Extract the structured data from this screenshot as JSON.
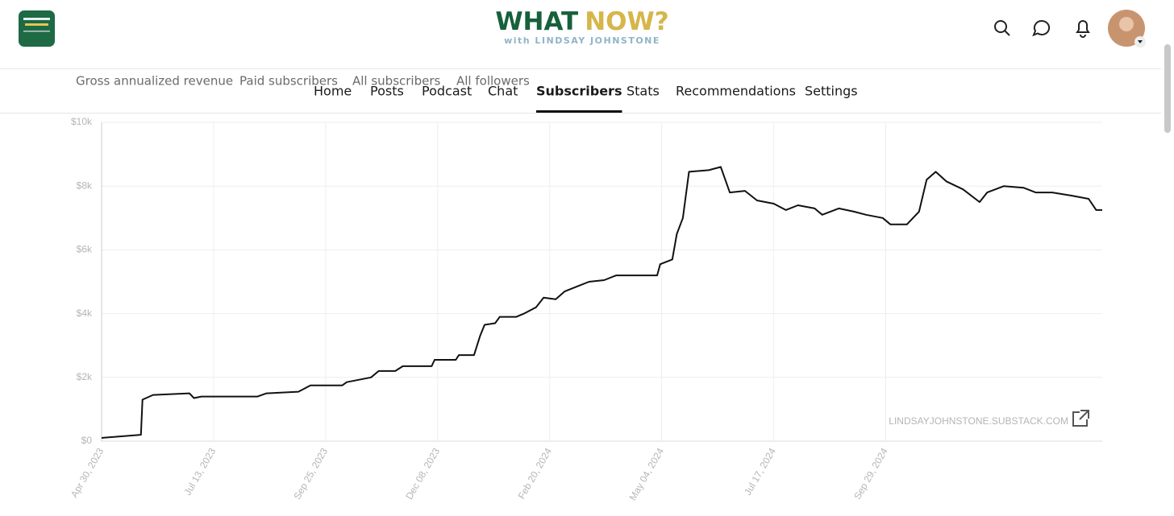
{
  "header": {
    "title_left": "WHAT",
    "title_right": "NOW?",
    "subtitle": "with LINDSAY JOHNSTONE"
  },
  "nav": [
    "Home",
    "Posts",
    "Podcast",
    "Chat",
    "Subscribers",
    "Stats",
    "Recommendations",
    "Settings"
  ],
  "nav_active": 4,
  "metric_tabs": [
    "Gross annualized revenue",
    "Paid subscribers",
    "All subscribers",
    "All followers"
  ],
  "metric_active": 0,
  "watermark": "LINDSAYJOHNSTONE.SUBSTACK.COM",
  "chart_data": {
    "type": "line",
    "color": "#111111",
    "grid": true,
    "x": [
      "2023-04-30",
      "2023-05-26",
      "2023-05-27",
      "2023-06-03",
      "2023-06-27",
      "2023-06-30",
      "2023-07-05",
      "2023-08-11",
      "2023-08-17",
      "2023-09-07",
      "2023-09-15",
      "2023-10-06",
      "2023-10-09",
      "2023-10-25",
      "2023-10-30",
      "2023-11-10",
      "2023-11-15",
      "2023-12-04",
      "2023-12-06",
      "2023-12-20",
      "2023-12-22",
      "2024-01-01",
      "2024-01-05",
      "2024-01-08",
      "2024-01-15",
      "2024-01-18",
      "2024-01-29",
      "2024-02-03",
      "2024-02-11",
      "2024-02-16",
      "2024-02-24",
      "2024-03-01",
      "2024-03-09",
      "2024-03-17",
      "2024-03-27",
      "2024-04-04",
      "2024-05-01",
      "2024-05-03",
      "2024-05-11",
      "2024-05-14",
      "2024-05-18",
      "2024-05-22",
      "2024-06-04",
      "2024-06-12",
      "2024-06-18",
      "2024-06-28",
      "2024-07-06",
      "2024-07-17",
      "2024-07-25",
      "2024-08-02",
      "2024-08-13",
      "2024-08-18",
      "2024-08-29",
      "2024-09-08",
      "2024-09-16",
      "2024-09-27",
      "2024-10-02",
      "2024-10-13",
      "2024-10-21",
      "2024-10-26",
      "2024-11-01",
      "2024-11-08",
      "2024-11-19",
      "2024-11-30",
      "2024-12-05",
      "2024-12-16",
      "2024-12-29",
      "2025-01-06",
      "2025-01-17",
      "2025-01-30",
      "2025-02-10",
      "2025-02-15",
      "2025-02-19"
    ],
    "values": [
      100,
      200,
      1300,
      1450,
      1500,
      1350,
      1400,
      1400,
      1500,
      1550,
      1750,
      1750,
      1850,
      2000,
      2200,
      2200,
      2350,
      2350,
      2550,
      2550,
      2700,
      2700,
      3300,
      3650,
      3700,
      3900,
      3900,
      4000,
      4200,
      4500,
      4450,
      4700,
      4850,
      5000,
      5050,
      5200,
      5200,
      5550,
      5700,
      6500,
      7000,
      8450,
      8500,
      8600,
      7800,
      7850,
      7550,
      7450,
      7250,
      7400,
      7300,
      7100,
      7300,
      7200,
      7100,
      7000,
      6800,
      6800,
      7200,
      8200,
      8450,
      8150,
      7900,
      7500,
      7800,
      8000,
      7950,
      7800,
      7800,
      7700,
      7600,
      7250,
      7250
    ],
    "xlim": [
      "2023-04-30",
      "2025-02-19"
    ],
    "xticks": [
      {
        "value": "2023-04-30",
        "label": "Apr 30, 2023"
      },
      {
        "value": "2023-07-13",
        "label": "Jul 13, 2023"
      },
      {
        "value": "2023-09-25",
        "label": "Sep 25, 2023"
      },
      {
        "value": "2023-12-08",
        "label": "Dec 08, 2023"
      },
      {
        "value": "2024-02-20",
        "label": "Feb 20, 2024"
      },
      {
        "value": "2024-05-04",
        "label": "May 04, 2024"
      },
      {
        "value": "2024-07-17",
        "label": "Jul 17, 2024"
      },
      {
        "value": "2024-09-29",
        "label": "Sep 29, 2024"
      }
    ],
    "ylim": [
      0,
      10000
    ],
    "yticks": [
      {
        "value": 0,
        "label": "$0"
      },
      {
        "value": 2000,
        "label": "$2k"
      },
      {
        "value": 4000,
        "label": "$4k"
      },
      {
        "value": 6000,
        "label": "$6k"
      },
      {
        "value": 8000,
        "label": "$8k"
      },
      {
        "value": 10000,
        "label": "$10k"
      }
    ]
  }
}
